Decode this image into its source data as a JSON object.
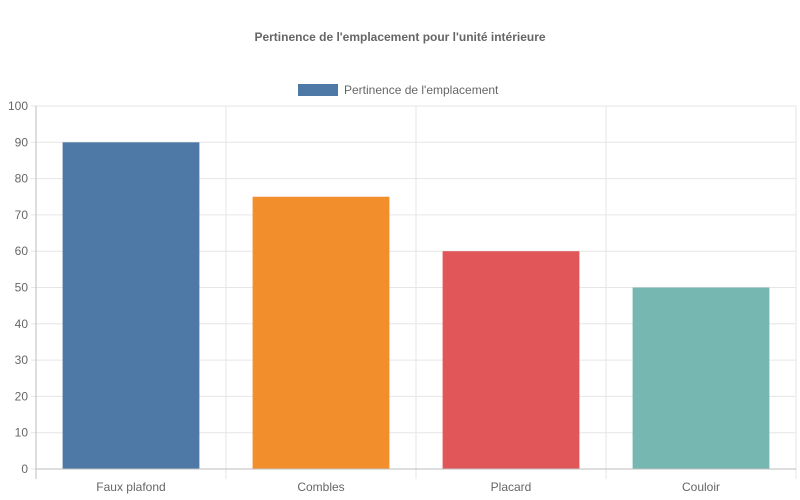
{
  "chart_data": {
    "type": "bar",
    "title": "Pertinence de l'emplacement pour l'unité intérieure",
    "legend": {
      "placement": "top-center"
    },
    "categories": [
      "Faux plafond",
      "Combles",
      "Placard",
      "Couloir"
    ],
    "series": [
      {
        "name": "Pertinence de l'emplacement",
        "values": [
          90,
          75,
          60,
          50
        ],
        "colors": [
          "#4e79a7",
          "#f28e2c",
          "#e15759",
          "#76b7b2"
        ],
        "legend_color": "#4e79a7"
      }
    ],
    "ylim": [
      0,
      100
    ],
    "yticks": [
      0,
      10,
      20,
      30,
      40,
      50,
      60,
      70,
      80,
      90,
      100
    ],
    "grid": true
  }
}
